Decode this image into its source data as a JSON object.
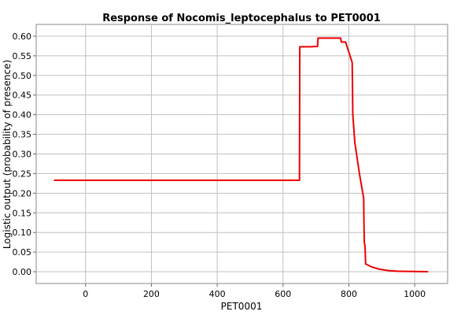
{
  "chart_data": {
    "type": "line",
    "title": "Response of Nocomis_leptocephalus to PET0001",
    "xlabel": "PET0001",
    "ylabel": "Logistic output (probability of presence)",
    "xlim": [
      -150,
      1100
    ],
    "ylim": [
      -0.03,
      0.63
    ],
    "x_ticks": [
      0,
      200,
      400,
      600,
      800,
      1000
    ],
    "y_ticks": [
      0.0,
      0.05,
      0.1,
      0.15,
      0.2,
      0.25,
      0.3,
      0.35,
      0.4,
      0.45,
      0.5,
      0.55,
      0.6
    ],
    "y_tick_labels": [
      "0.00",
      "0.05",
      "0.10",
      "0.15",
      "0.20",
      "0.25",
      "0.30",
      "0.35",
      "0.40",
      "0.45",
      "0.50",
      "0.55",
      "0.60"
    ],
    "grid": true,
    "series": [
      {
        "color": "#ee0000",
        "points": [
          [
            -95,
            0.233
          ],
          [
            650,
            0.233
          ],
          [
            651,
            0.573
          ],
          [
            683,
            0.573
          ],
          [
            705,
            0.574
          ],
          [
            706,
            0.595
          ],
          [
            775,
            0.595
          ],
          [
            777,
            0.585
          ],
          [
            790,
            0.585
          ],
          [
            810,
            0.533
          ],
          [
            812,
            0.4
          ],
          [
            818,
            0.33
          ],
          [
            832,
            0.25
          ],
          [
            845,
            0.187
          ],
          [
            846,
            0.12
          ],
          [
            847,
            0.075
          ],
          [
            849,
            0.065
          ],
          [
            851,
            0.02
          ],
          [
            870,
            0.012
          ],
          [
            890,
            0.007
          ],
          [
            920,
            0.003
          ],
          [
            950,
            0.001
          ],
          [
            1040,
            0.0
          ]
        ]
      }
    ]
  }
}
